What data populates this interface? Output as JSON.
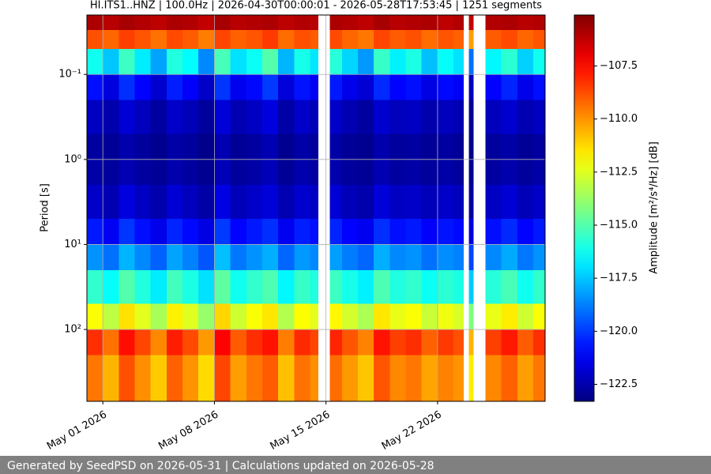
{
  "chart_data": {
    "type": "heatmap",
    "title": "HI.ITS1..HNZ | 100.0Hz | 2026-04-30T00:00:01 - 2026-05-28T17:53:45 | 1251 segments",
    "ylabel": "Period [s]",
    "colorbar_label": "Amplitude [m²/s⁴/Hz] [dB]",
    "footer": "Generated by SeedPSD on 2026-05-31 | Calculations updated on 2026-05-28",
    "cmap": "jet",
    "grid": true,
    "yscale": "log",
    "yinverted": true,
    "xlim": [
      "2026-04-30T00:00:01",
      "2026-05-28T17:53:45"
    ],
    "xticks": [
      {
        "value": "2026-05-01T00:00",
        "label": "May 01 2026"
      },
      {
        "value": "2026-05-08T00:00",
        "label": "May 08 2026"
      },
      {
        "value": "2026-05-15T00:00",
        "label": "May 15 2026"
      },
      {
        "value": "2026-05-22T00:00",
        "label": "May 22 2026"
      }
    ],
    "ylim": [
      0.02,
      700
    ],
    "yticks": [
      {
        "value": 0.1,
        "label": "10⁻¹"
      },
      {
        "value": 1,
        "label": "10⁰"
      },
      {
        "value": 10,
        "label": "10¹"
      },
      {
        "value": 100,
        "label": "10²"
      }
    ],
    "clim": [
      -123.3,
      -105.1
    ],
    "cticks": [
      {
        "value": -107.5,
        "label": "−107.5"
      },
      {
        "value": -110,
        "label": "−110.0"
      },
      {
        "value": -112.5,
        "label": "−112.5"
      },
      {
        "value": -115,
        "label": "−115.0"
      },
      {
        "value": -117.5,
        "label": "−117.5"
      },
      {
        "value": -120,
        "label": "−120.0"
      },
      {
        "value": -122.5,
        "label": "−122.5"
      }
    ],
    "bins": [
      "2026-04-30T00:00:01",
      "2026-05-01T00:00",
      "2026-05-02T00:00",
      "2026-05-03T00:00",
      "2026-05-04T00:00",
      "2026-05-05T00:00",
      "2026-05-06T00:00",
      "2026-05-07T00:00",
      "2026-05-08T00:00",
      "2026-05-09T00:00",
      "2026-05-10T00:00",
      "2026-05-11T00:00",
      "2026-05-12T00:00",
      "2026-05-13T00:00",
      "2026-05-14T00:00",
      "2026-05-14T12:00",
      "2026-05-15T06:00",
      "2026-05-16T00:00",
      "2026-05-17T00:00",
      "2026-05-18T00:00",
      "2026-05-19T00:00",
      "2026-05-20T00:00",
      "2026-05-21T00:00",
      "2026-05-22T00:00",
      "2026-05-23T00:00",
      "2026-05-23T15:00",
      "2026-05-23T23:00",
      "2026-05-24T06:00",
      "2026-05-25T00:00",
      "2026-05-26T00:00",
      "2026-05-27T00:00",
      "2026-05-28T00:00",
      "2026-05-28T17:53:45"
    ],
    "period_bins": [
      0.02,
      0.03,
      0.05,
      0.1,
      0.2,
      0.5,
      1,
      2,
      5,
      10,
      20,
      50,
      100,
      200,
      700
    ],
    "values": [
      [
        -105.9,
        -106.1,
        -105.8,
        -106.0,
        -106.2,
        -105.9,
        -106.0,
        -106.3,
        -105.8,
        -106.1,
        -106.0,
        -105.9,
        -106.2,
        -106.0,
        -106.1,
        null,
        -105.9,
        -106.0,
        -106.2,
        -105.8,
        -106.1,
        -106.0,
        -105.9,
        -106.2,
        -106.0,
        null,
        -106.3,
        null,
        -106.0,
        -105.9,
        -106.1,
        -106.0
      ],
      [
        -108.8,
        -109.2,
        -108.5,
        -108.9,
        -109.4,
        -108.7,
        -109.0,
        -109.6,
        -108.6,
        -109.1,
        -108.9,
        -108.4,
        -109.3,
        -108.8,
        -109.0,
        null,
        -108.7,
        -109.2,
        -109.5,
        -108.6,
        -109.0,
        -108.8,
        -109.3,
        -108.9,
        -109.1,
        null,
        -110.2,
        null,
        -109.0,
        -108.7,
        -109.2,
        -108.9
      ],
      [
        -116.2,
        -117.5,
        -115.4,
        -116.8,
        -118.1,
        -115.9,
        -116.5,
        -118.6,
        -115.2,
        -117.0,
        -116.3,
        -115.0,
        -117.8,
        -116.1,
        -116.9,
        null,
        -115.8,
        -117.2,
        -118.3,
        -115.5,
        -116.7,
        -116.0,
        -117.6,
        -116.4,
        -117.0,
        null,
        -119.0,
        null,
        -116.6,
        -115.7,
        -117.3,
        -116.2
      ],
      [
        -120.8,
        -121.6,
        -120.2,
        -121.0,
        -121.9,
        -120.5,
        -121.1,
        -122.0,
        -120.1,
        -121.3,
        -120.9,
        -120.0,
        -121.7,
        -120.7,
        -121.2,
        null,
        -120.6,
        -121.4,
        -121.8,
        -120.3,
        -121.0,
        -120.8,
        -121.5,
        -120.9,
        -121.2,
        null,
        -122.2,
        null,
        -121.0,
        -120.4,
        -121.4,
        -120.8
      ],
      [
        -122.1,
        -122.5,
        -121.8,
        -122.2,
        -122.7,
        -122.0,
        -122.3,
        -122.8,
        -121.7,
        -122.4,
        -122.1,
        -121.6,
        -122.6,
        -122.0,
        -122.3,
        null,
        -122.0,
        -122.4,
        -122.7,
        -121.9,
        -122.2,
        -122.1,
        -122.5,
        -122.2,
        -122.4,
        null,
        -122.9,
        null,
        -122.2,
        -121.9,
        -122.4,
        -122.1
      ],
      [
        -122.7,
        -122.9,
        -122.5,
        -122.8,
        -123.0,
        -122.6,
        -122.8,
        -123.1,
        -122.4,
        -122.9,
        -122.7,
        -122.4,
        -123.0,
        -122.6,
        -122.8,
        null,
        -122.6,
        -122.9,
        -123.0,
        -122.5,
        -122.8,
        -122.7,
        -122.9,
        -122.7,
        -122.9,
        null,
        -123.1,
        null,
        -122.8,
        -122.6,
        -122.9,
        -122.7
      ],
      [
        -122.6,
        -122.8,
        -122.4,
        -122.7,
        -122.9,
        -122.5,
        -122.7,
        -123.0,
        -122.3,
        -122.8,
        -122.6,
        -122.3,
        -122.9,
        -122.5,
        -122.7,
        null,
        -122.5,
        -122.8,
        -122.9,
        -122.4,
        -122.7,
        -122.6,
        -122.8,
        -122.6,
        -122.8,
        null,
        -123.0,
        null,
        -122.7,
        -122.5,
        -122.8,
        -122.6
      ],
      [
        -122.0,
        -122.4,
        -121.6,
        -122.1,
        -122.5,
        -121.8,
        -122.2,
        -122.6,
        -121.5,
        -122.3,
        -122.0,
        -121.7,
        -122.4,
        -121.9,
        -122.1,
        null,
        -121.8,
        -122.3,
        -122.5,
        -121.7,
        -122.1,
        -122.0,
        -122.3,
        -122.0,
        -122.2,
        null,
        -122.7,
        null,
        -122.1,
        -121.8,
        -122.3,
        -122.0
      ],
      [
        -120.6,
        -121.2,
        -120.1,
        -120.8,
        -121.4,
        -120.4,
        -120.9,
        -121.5,
        -120.0,
        -121.0,
        -120.6,
        -120.2,
        -121.3,
        -120.5,
        -120.8,
        null,
        -120.4,
        -121.0,
        -121.3,
        -120.2,
        -120.8,
        -120.6,
        -121.1,
        -120.7,
        -120.9,
        null,
        -121.6,
        null,
        -120.8,
        -120.3,
        -121.0,
        -120.6
      ],
      [
        -118.4,
        -119.0,
        -117.8,
        -118.6,
        -119.3,
        -118.1,
        -118.7,
        -119.5,
        -117.6,
        -118.9,
        -118.4,
        -117.9,
        -119.2,
        -118.3,
        -118.6,
        null,
        -118.2,
        -118.8,
        -119.2,
        -117.9,
        -118.6,
        -118.4,
        -119.0,
        -118.5,
        -118.7,
        null,
        -119.8,
        null,
        -118.6,
        -118.0,
        -118.9,
        -118.4
      ],
      [
        -115.6,
        -116.4,
        -115.0,
        -115.9,
        -116.8,
        -115.3,
        -116.0,
        -117.0,
        -114.8,
        -116.2,
        -115.6,
        -115.1,
        -116.6,
        -115.5,
        -115.9,
        null,
        -115.4,
        -116.1,
        -116.7,
        -115.1,
        -115.9,
        -115.6,
        -116.3,
        -115.7,
        -116.0,
        null,
        -117.4,
        null,
        -115.8,
        -115.2,
        -116.2,
        -115.6
      ],
      [
        -112.0,
        -113.1,
        -111.4,
        -112.4,
        -113.5,
        -111.7,
        -112.5,
        -113.8,
        -111.2,
        -112.8,
        -112.0,
        -111.5,
        -113.3,
        -111.9,
        -112.4,
        null,
        -111.8,
        -112.7,
        -113.4,
        -111.5,
        -112.3,
        -112.0,
        -112.9,
        -112.2,
        -112.6,
        null,
        -114.2,
        null,
        -112.3,
        -111.6,
        -112.8,
        -112.0
      ],
      [
        -108.2,
        -109.4,
        -107.6,
        -108.6,
        -109.8,
        -107.9,
        -108.7,
        -110.1,
        -107.4,
        -109.0,
        -108.2,
        -107.7,
        -109.6,
        -108.1,
        -108.6,
        null,
        -108.0,
        -108.9,
        -109.7,
        -107.7,
        -108.5,
        -108.2,
        -109.1,
        -108.4,
        -108.8,
        null,
        -110.6,
        null,
        -108.5,
        -107.8,
        -109.0,
        -108.2
      ],
      [
        -109.5,
        -110.6,
        -108.8,
        -109.9,
        -111.0,
        -109.1,
        -110.0,
        -111.3,
        -108.6,
        -110.2,
        -109.5,
        -109.0,
        -110.8,
        -109.4,
        -109.9,
        null,
        -109.3,
        -110.1,
        -110.9,
        -108.9,
        -109.8,
        -109.5,
        -110.3,
        -109.7,
        -110.0,
        null,
        -111.6,
        null,
        -109.8,
        -109.1,
        -110.2,
        -109.5
      ]
    ]
  }
}
